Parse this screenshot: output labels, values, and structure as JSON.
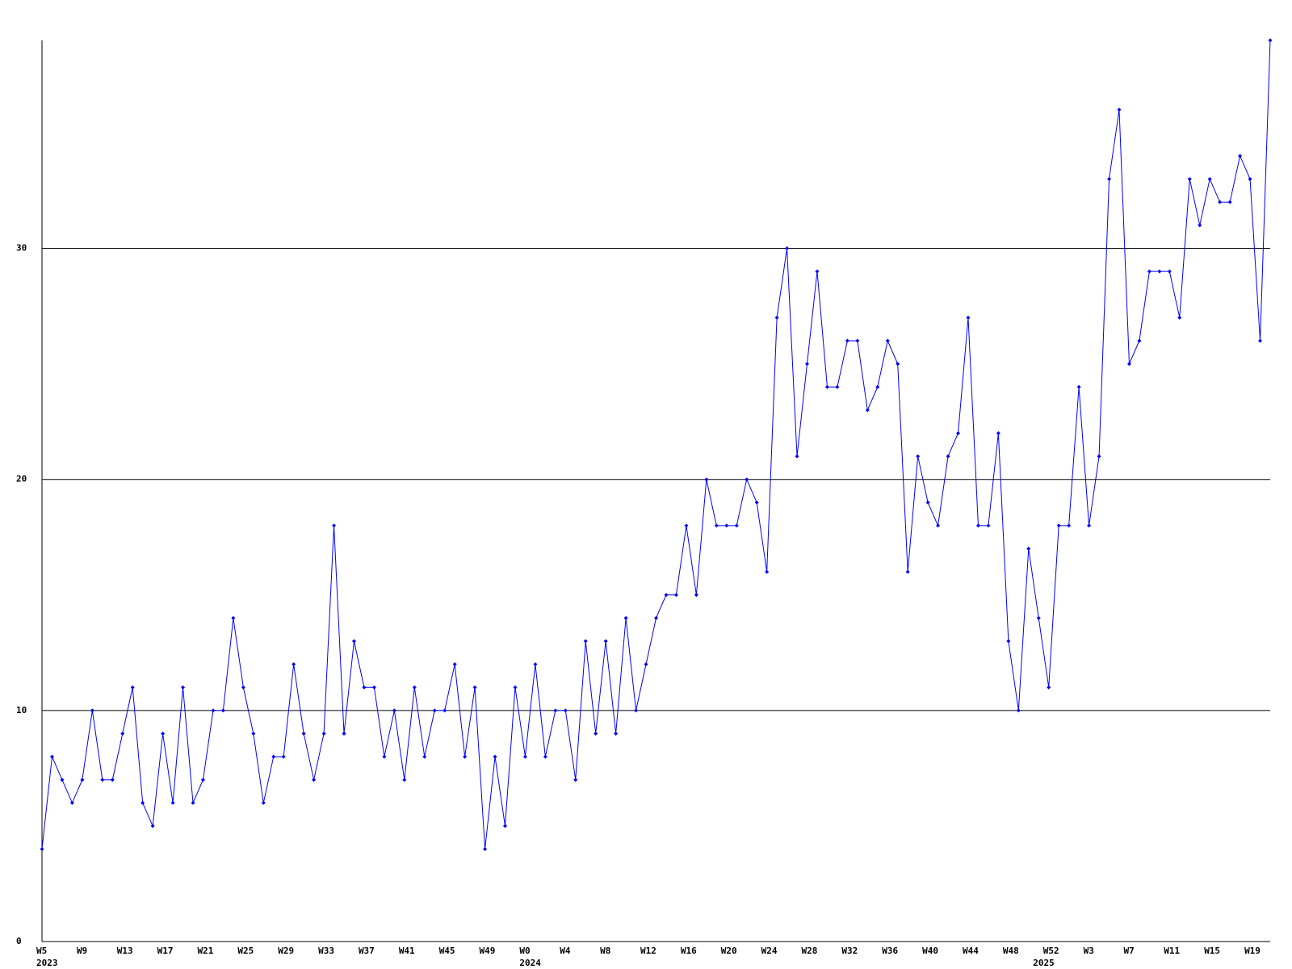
{
  "chart_data": {
    "type": "line",
    "categories": [
      "W5",
      null,
      null,
      null,
      "W9",
      null,
      null,
      null,
      "W13",
      null,
      null,
      null,
      "W17",
      null,
      null,
      null,
      "W21",
      null,
      null,
      null,
      "W25",
      null,
      null,
      null,
      "W29",
      null,
      null,
      null,
      "W33",
      null,
      null,
      null,
      "W37",
      null,
      null,
      null,
      "W41",
      null,
      null,
      null,
      "W45",
      null,
      null,
      null,
      "W49",
      null,
      null,
      null,
      "W0",
      null,
      null,
      null,
      "W4",
      null,
      null,
      null,
      "W8",
      null,
      null,
      null,
      "W12",
      null,
      null,
      null,
      "W16",
      null,
      null,
      null,
      "W20",
      null,
      null,
      null,
      "W24",
      null,
      null,
      null,
      "W28",
      null,
      null,
      null,
      "W32",
      null,
      null,
      null,
      "W36",
      null,
      null,
      null,
      "W40",
      null,
      null,
      null,
      "W44",
      null,
      null,
      null,
      "W48",
      null,
      null,
      null,
      "W52",
      null,
      null,
      null,
      "W3",
      null,
      null,
      null,
      "W7",
      null,
      null,
      null,
      "W11",
      null,
      null,
      null,
      "W15",
      null,
      null,
      null,
      "W19",
      null,
      null
    ],
    "years": [
      "2023",
      null,
      null,
      null,
      null,
      null,
      null,
      null,
      null,
      null,
      null,
      null,
      null,
      null,
      null,
      null,
      null,
      null,
      null,
      null,
      null,
      null,
      null,
      null,
      null,
      null,
      null,
      null,
      null,
      null,
      null,
      null,
      null,
      null,
      null,
      null,
      null,
      null,
      null,
      null,
      null,
      null,
      null,
      null,
      null,
      null,
      null,
      null,
      "2024",
      null,
      null,
      null,
      null,
      null,
      null,
      null,
      null,
      null,
      null,
      null,
      null,
      null,
      null,
      null,
      null,
      null,
      null,
      null,
      null,
      null,
      null,
      null,
      null,
      null,
      null,
      null,
      null,
      null,
      null,
      null,
      null,
      null,
      null,
      null,
      null,
      null,
      null,
      null,
      null,
      null,
      null,
      null,
      null,
      null,
      null,
      null,
      null,
      null,
      null,
      "2025",
      null,
      null,
      null,
      null,
      null,
      null,
      null,
      null,
      null,
      null,
      null,
      null,
      null,
      null,
      null,
      null,
      null,
      null,
      null,
      null
    ],
    "series": [
      {
        "color": "#0000ff",
        "values": [
          4,
          8,
          7,
          6,
          7,
          10,
          7,
          7,
          9,
          11,
          6,
          5,
          9,
          6,
          11,
          6,
          7,
          10,
          10,
          14,
          11,
          9,
          6,
          8,
          8,
          12,
          9,
          7,
          9,
          18,
          9,
          13,
          11,
          11,
          8,
          10,
          7,
          11,
          8,
          10,
          10,
          12,
          8,
          11,
          4,
          8,
          5,
          11,
          8,
          12,
          8,
          10,
          10,
          7,
          13,
          9,
          13,
          9,
          14,
          10,
          12,
          14,
          15,
          15,
          18,
          15,
          20,
          18,
          18,
          18,
          20,
          19,
          16,
          27,
          30,
          21,
          25,
          29,
          24,
          24,
          26,
          26,
          23,
          24,
          26,
          25,
          16,
          21,
          19,
          18,
          21,
          22,
          27,
          18,
          18,
          22,
          13,
          10,
          17,
          14,
          11,
          18,
          18,
          24,
          18,
          21,
          33,
          36,
          25,
          26,
          29,
          29,
          29,
          27,
          33,
          31,
          33,
          32,
          32,
          34,
          33,
          26,
          39
        ]
      }
    ],
    "ylim": [
      0,
      39
    ],
    "yticks": [
      0,
      10,
      20,
      30
    ],
    "grid": true
  }
}
